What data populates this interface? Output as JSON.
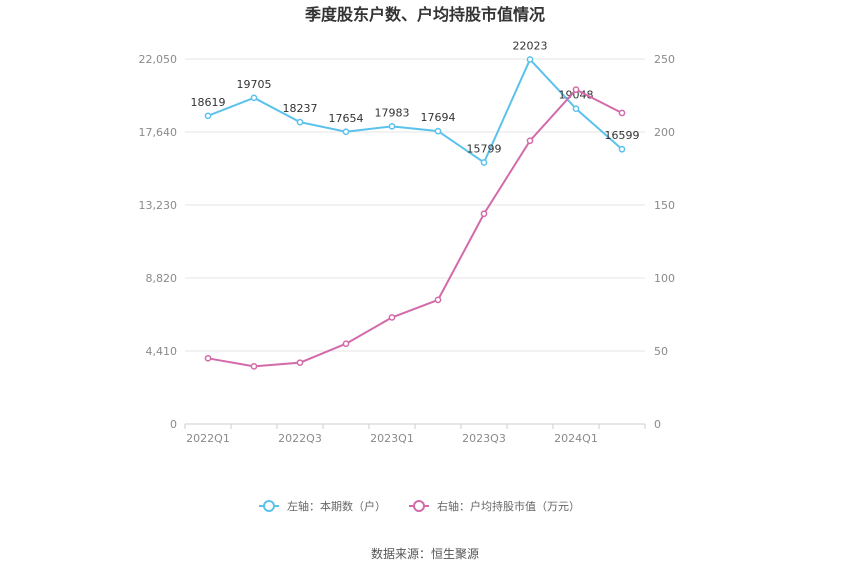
{
  "chart_data": {
    "type": "line",
    "title": "季度股东户数、户均持股市值情况",
    "categories": [
      "2022Q1",
      "2022Q2",
      "2022Q3",
      "2022Q4",
      "2023Q1",
      "2023Q2",
      "2023Q3",
      "2023Q4",
      "2024Q1",
      "2024Q2"
    ],
    "x_tick_labels": [
      "2022Q1",
      "2022Q3",
      "2023Q1",
      "2023Q3",
      "2024Q1"
    ],
    "left_axis": {
      "ylim": [
        0,
        22050
      ],
      "ticks": [
        0,
        4410,
        8820,
        13230,
        17640,
        22050
      ],
      "tick_labels": [
        "0",
        "4,410",
        "8,820",
        "13,230",
        "17,640",
        "22,050"
      ]
    },
    "right_axis": {
      "ylim": [
        0,
        250
      ],
      "ticks": [
        0,
        50,
        100,
        150,
        200,
        250
      ],
      "tick_labels": [
        "0",
        "50",
        "100",
        "150",
        "200",
        "250"
      ]
    },
    "series": [
      {
        "name": "左轴：本期数（户）",
        "axis": "left",
        "color": "#5bc2ec",
        "values": [
          18619,
          19705,
          18237,
          17654,
          17983,
          17694,
          15799,
          22023,
          19048,
          16599
        ],
        "labels": [
          "18619",
          "19705",
          "18237",
          "17654",
          "17983",
          "17694",
          "15799",
          "22023",
          "19048",
          "16599"
        ]
      },
      {
        "name": "右轴：户均持股市值（万元）",
        "axis": "right",
        "color": "#d36aa9",
        "values": [
          45,
          39.5,
          42,
          55,
          73,
          85,
          144,
          194,
          229,
          213
        ]
      }
    ],
    "grid": true,
    "legend_position": "bottom"
  },
  "source_text": "数据来源：恒生聚源"
}
